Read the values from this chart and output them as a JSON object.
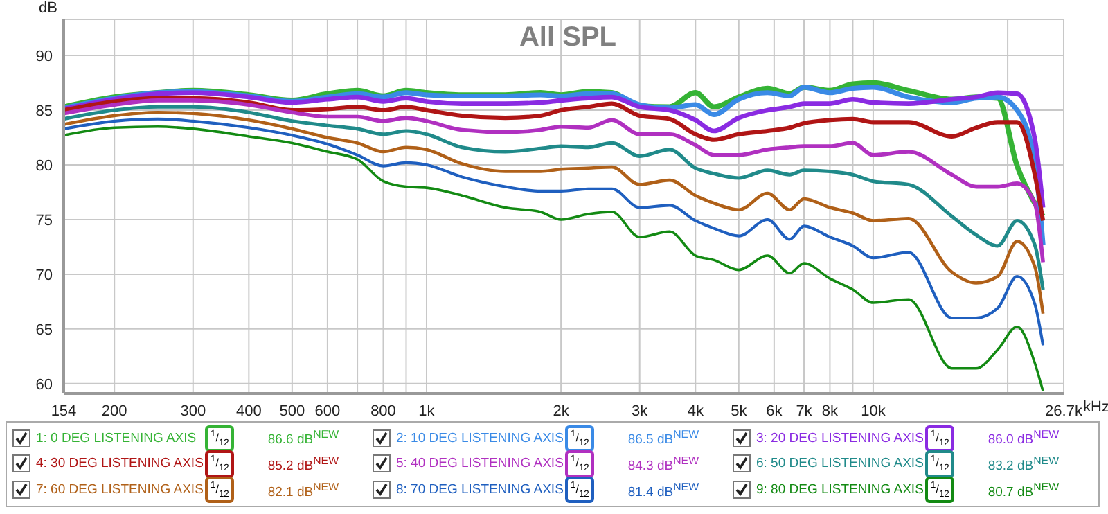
{
  "chart_data": {
    "type": "line",
    "title": "All SPL",
    "ylabel": "dB",
    "xlabel": "kHz",
    "log": "x",
    "grid": true,
    "legend": "bottom",
    "xlim": [
      154,
      26700
    ],
    "ylim": [
      59.1,
      93.3
    ],
    "xticks": [
      154,
      200,
      300,
      400,
      500,
      600,
      {
        "value": 700,
        "label": null
      },
      800,
      {
        "value": 900,
        "label": null
      },
      {
        "value": 1000,
        "label": "1k"
      },
      {
        "value": 2000,
        "label": "2k"
      },
      {
        "value": 3000,
        "label": "3k"
      },
      {
        "value": 4000,
        "label": "4k"
      },
      {
        "value": 5000,
        "label": "5k"
      },
      {
        "value": 6000,
        "label": "6k"
      },
      {
        "value": 7000,
        "label": "7k"
      },
      {
        "value": 8000,
        "label": "8k"
      },
      {
        "value": 9000,
        "label": null
      },
      {
        "value": 10000,
        "label": "10k"
      },
      {
        "value": 20000,
        "label": null
      },
      {
        "value": 26700,
        "label": "26.7k"
      }
    ],
    "yticks": [
      60,
      65,
      70,
      75,
      80,
      85,
      90
    ],
    "x": [
      154,
      200,
      250,
      300,
      400,
      500,
      600,
      700,
      800,
      900,
      1000,
      1200,
      1500,
      1800,
      2000,
      2300,
      2600,
      3000,
      3500,
      4000,
      4400,
      5000,
      5800,
      6500,
      7000,
      8000,
      9000,
      10000,
      12000,
      15000,
      17000,
      19000,
      21000,
      23000,
      24000
    ],
    "series": [
      {
        "name": "1: 0 DEG LISTENING AXIS",
        "color": "#35b335",
        "values": [
          85.3,
          86.2,
          86.6,
          86.8,
          86.4,
          85.9,
          86.5,
          86.8,
          86.3,
          86.8,
          86.6,
          86.4,
          86.4,
          86.6,
          86.4,
          86.7,
          86.6,
          85.4,
          85.3,
          86.6,
          85.3,
          86.2,
          87.0,
          86.5,
          87.1,
          86.8,
          87.4,
          87.5,
          86.8,
          86.0,
          86.2,
          86.1,
          79.9,
          76.5,
          75.3
        ]
      },
      {
        "name": "2: 10 DEG LISTENING AXIS",
        "color": "#3a8ae6",
        "values": [
          85.2,
          86.1,
          86.6,
          86.7,
          86.3,
          85.8,
          86.2,
          86.5,
          86.2,
          86.6,
          86.4,
          86.3,
          86.3,
          86.4,
          86.3,
          86.5,
          86.5,
          85.5,
          85.2,
          85.5,
          84.6,
          86.0,
          86.6,
          86.3,
          87.1,
          86.6,
          87.0,
          87.1,
          86.2,
          85.7,
          86.1,
          86.2,
          85.0,
          80.3,
          72.7
        ]
      },
      {
        "name": "3: 20 DEG LISTENING AXIS",
        "color": "#8a2be2",
        "values": [
          85.1,
          86.0,
          86.5,
          86.6,
          86.2,
          85.7,
          86.0,
          86.2,
          85.8,
          86.1,
          85.8,
          85.6,
          85.6,
          85.7,
          85.9,
          86.1,
          86.2,
          85.3,
          85.0,
          84.1,
          83.1,
          84.3,
          85.0,
          85.3,
          85.6,
          85.6,
          86.0,
          85.7,
          85.6,
          86.0,
          86.2,
          86.6,
          86.5,
          82.4,
          76.1
        ]
      },
      {
        "name": "4: 30 DEG LISTENING AXIS",
        "color": "#b01515",
        "values": [
          85.0,
          85.8,
          86.1,
          86.1,
          85.7,
          85.0,
          85.1,
          85.3,
          85.0,
          85.3,
          85.0,
          84.5,
          84.3,
          84.5,
          85.0,
          85.3,
          85.6,
          84.5,
          84.2,
          82.8,
          82.3,
          82.8,
          83.1,
          83.4,
          83.8,
          84.1,
          84.2,
          83.9,
          83.9,
          82.6,
          83.4,
          83.9,
          83.9,
          79.1,
          74.9
        ]
      },
      {
        "name": "5: 40 DEG LISTENING AXIS",
        "color": "#b030c0",
        "values": [
          84.7,
          85.5,
          85.9,
          85.9,
          85.5,
          84.8,
          84.4,
          84.4,
          84.0,
          84.3,
          84.0,
          83.2,
          83.0,
          83.2,
          83.5,
          83.4,
          84.1,
          82.8,
          82.8,
          81.8,
          80.9,
          80.9,
          81.4,
          81.6,
          81.7,
          81.7,
          82.0,
          80.9,
          81.2,
          79.1,
          78.0,
          78.0,
          78.3,
          76.5,
          71.1
        ]
      },
      {
        "name": "6: 50 DEG LISTENING AXIS",
        "color": "#208a8a",
        "values": [
          84.2,
          85.0,
          85.3,
          85.3,
          84.8,
          84.0,
          83.6,
          83.3,
          82.8,
          83.1,
          82.8,
          81.6,
          81.2,
          81.5,
          81.7,
          81.6,
          82.0,
          80.8,
          81.4,
          79.7,
          79.2,
          78.8,
          79.5,
          79.1,
          79.5,
          79.4,
          79.1,
          78.5,
          78.2,
          75.3,
          73.6,
          72.6,
          74.9,
          72.7,
          68.6
        ]
      },
      {
        "name": "7: 60 DEG LISTENING AXIS",
        "color": "#b06018",
        "values": [
          83.7,
          84.5,
          84.8,
          84.7,
          84.1,
          83.3,
          82.5,
          82.0,
          81.2,
          81.6,
          81.4,
          80.1,
          79.4,
          79.4,
          79.6,
          79.7,
          79.8,
          78.2,
          78.6,
          77.2,
          76.5,
          75.9,
          77.4,
          75.9,
          76.9,
          76.1,
          75.6,
          74.9,
          75.1,
          70.2,
          69.2,
          69.8,
          73.0,
          70.7,
          66.4
        ]
      },
      {
        "name": "8: 70 DEG LISTENING AXIS",
        "color": "#1f5fbf",
        "values": [
          83.3,
          84.0,
          84.2,
          84.0,
          83.4,
          82.7,
          81.9,
          80.9,
          79.9,
          80.2,
          80.0,
          78.9,
          78.0,
          77.6,
          77.6,
          77.8,
          77.8,
          76.1,
          76.3,
          74.9,
          74.2,
          73.5,
          75.0,
          73.2,
          74.4,
          73.4,
          72.6,
          71.5,
          72.0,
          66.0,
          66.0,
          66.9,
          69.8,
          67.3,
          63.5
        ]
      },
      {
        "name": "9: 80 DEG LISTENING AXIS",
        "color": "#138a13",
        "values": [
          82.7,
          83.4,
          83.5,
          83.3,
          82.6,
          82.0,
          81.2,
          80.5,
          78.5,
          78.0,
          77.9,
          77.2,
          76.1,
          75.7,
          75.0,
          75.5,
          75.7,
          73.4,
          73.9,
          71.7,
          71.3,
          70.4,
          71.7,
          70.1,
          71.0,
          69.6,
          68.6,
          67.4,
          67.7,
          61.4,
          61.4,
          63.1,
          65.2,
          61.9,
          59.3
        ]
      }
    ],
    "annotations": [
      "$^{1}$/$_{12}$",
      "86.6 dB$^{NEW}$",
      "86.5 dB$^{NEW}$",
      "86.0 dB$^{NEW}$",
      "85.2 dB$^{NEW}$",
      "84.3 dB$^{NEW}$",
      "83.2 dB$^{NEW}$",
      "82.1 dB$^{NEW}$",
      "81.4 dB$^{NEW}$",
      "80.7 dB$^{NEW}$"
    ]
  }
}
